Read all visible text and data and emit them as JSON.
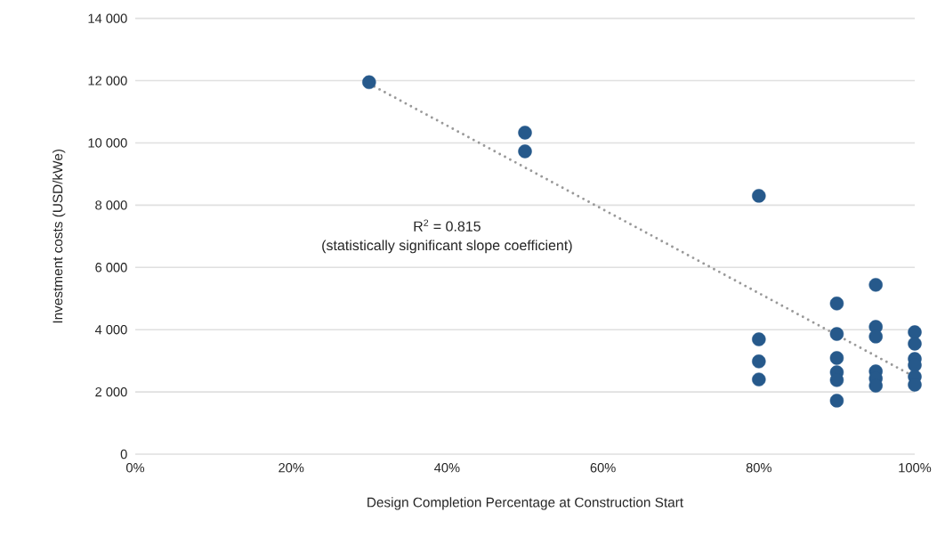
{
  "chart_data": {
    "type": "scatter",
    "xlabel": "Design Completion Percentage at Construction Start",
    "ylabel": "Investment costs (USD/kWe)",
    "xlim": [
      0,
      100
    ],
    "xticks": [
      {
        "value": 0,
        "label": "0%"
      },
      {
        "value": 20,
        "label": "20%"
      },
      {
        "value": 40,
        "label": "40%"
      },
      {
        "value": 60,
        "label": "60%"
      },
      {
        "value": 80,
        "label": "80%"
      },
      {
        "value": 100,
        "label": "100%"
      }
    ],
    "ylim": [
      0,
      14000
    ],
    "yticks": [
      0,
      {
        "value": 2000,
        "label": "2 000"
      },
      {
        "value": 4000,
        "label": "4 000"
      },
      {
        "value": 6000,
        "label": "6 000"
      },
      {
        "value": 8000,
        "label": "8 000"
      },
      {
        "value": 10000,
        "label": "10 000"
      },
      {
        "value": 12000,
        "label": "12 000"
      },
      {
        "value": 14000,
        "label": "14 000"
      }
    ],
    "grid": "y",
    "marker": "circle",
    "annotations": [
      "R$^{2}$ = 0.815",
      "(statistically significant slope coefficient)"
    ],
    "series": [
      {
        "type": "scatter",
        "color": "#26598b",
        "x": [
          30,
          50,
          50,
          80,
          80,
          80,
          80,
          90,
          90,
          90,
          90,
          90,
          90,
          95,
          95,
          95,
          95,
          95,
          95,
          100,
          100,
          100,
          100,
          100,
          100
        ],
        "values": [
          11950,
          10330,
          9730,
          8300,
          3690,
          2980,
          2400,
          4840,
          3860,
          3090,
          2630,
          2380,
          1720,
          5440,
          4090,
          3780,
          2660,
          2430,
          2200,
          3920,
          3550,
          3060,
          2860,
          2490,
          2230
        ]
      },
      {
        "type": "line",
        "color": "#999999",
        "line_style": "dotted",
        "marker": "none",
        "x": [
          30,
          100
        ],
        "values": [
          11900,
          2480
        ]
      }
    ]
  }
}
